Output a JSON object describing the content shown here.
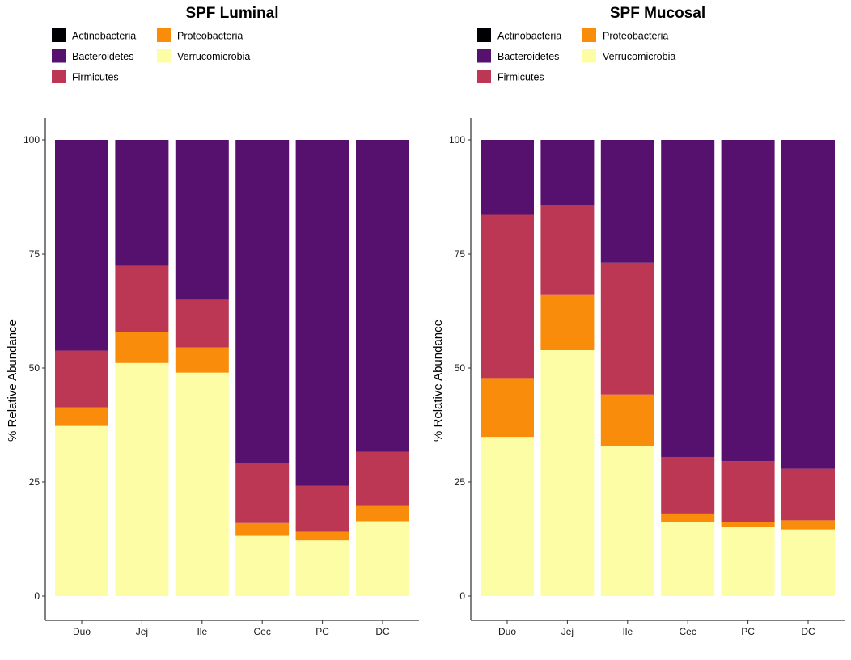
{
  "chart_data": [
    {
      "type": "bar",
      "stacked": true,
      "title": "SPF Luminal",
      "xlabel": "",
      "ylabel": "% Relative Abundance",
      "ylim": [
        0,
        100
      ],
      "yticks": [
        0,
        25,
        50,
        75,
        100
      ],
      "grid": false,
      "legend_position": "top",
      "categories": [
        "Duo",
        "Jej",
        "Ile",
        "Cec",
        "PC",
        "DC"
      ],
      "legend": [
        "Actinobacteria",
        "Bacteroidetes",
        "Firmicutes",
        "Proteobacteria",
        "Verrucomicrobia"
      ],
      "series": [
        {
          "name": "Verrucomicrobia",
          "color": "#FCFDA4",
          "values": [
            37.3,
            51.1,
            49.0,
            13.2,
            12.2,
            16.4
          ]
        },
        {
          "name": "Proteobacteria",
          "color": "#F98C0A",
          "values": [
            4.1,
            6.8,
            5.5,
            2.8,
            1.9,
            3.5
          ]
        },
        {
          "name": "Firmicutes",
          "color": "#BB3754",
          "values": [
            12.4,
            14.5,
            10.5,
            13.2,
            10.1,
            11.7
          ]
        },
        {
          "name": "Bacteroidetes",
          "color": "#56106E",
          "values": [
            46.2,
            27.6,
            35.0,
            70.8,
            75.8,
            68.4
          ]
        },
        {
          "name": "Actinobacteria",
          "color": "#000004",
          "values": [
            0,
            0,
            0,
            0,
            0,
            0
          ]
        }
      ]
    },
    {
      "type": "bar",
      "stacked": true,
      "title": "SPF Mucosal",
      "xlabel": "",
      "ylabel": "% Relative Abundance",
      "ylim": [
        0,
        100
      ],
      "yticks": [
        0,
        25,
        50,
        75,
        100
      ],
      "grid": false,
      "legend_position": "top",
      "categories": [
        "Duo",
        "Jej",
        "Ile",
        "Cec",
        "PC",
        "DC"
      ],
      "legend": [
        "Actinobacteria",
        "Bacteroidetes",
        "Firmicutes",
        "Proteobacteria",
        "Verrucomicrobia"
      ],
      "series": [
        {
          "name": "Verrucomicrobia",
          "color": "#FCFDA4",
          "values": [
            34.9,
            53.9,
            32.9,
            16.2,
            15.1,
            14.6
          ]
        },
        {
          "name": "Proteobacteria",
          "color": "#F98C0A",
          "values": [
            12.9,
            12.1,
            11.3,
            1.9,
            1.2,
            2.0
          ]
        },
        {
          "name": "Firmicutes",
          "color": "#BB3754",
          "values": [
            35.8,
            19.7,
            28.9,
            12.4,
            13.3,
            11.3
          ]
        },
        {
          "name": "Bacteroidetes",
          "color": "#56106E",
          "values": [
            16.4,
            14.3,
            26.9,
            69.5,
            70.4,
            72.1
          ]
        },
        {
          "name": "Actinobacteria",
          "color": "#000004",
          "values": [
            0,
            0,
            0,
            0,
            0,
            0
          ]
        }
      ]
    }
  ]
}
